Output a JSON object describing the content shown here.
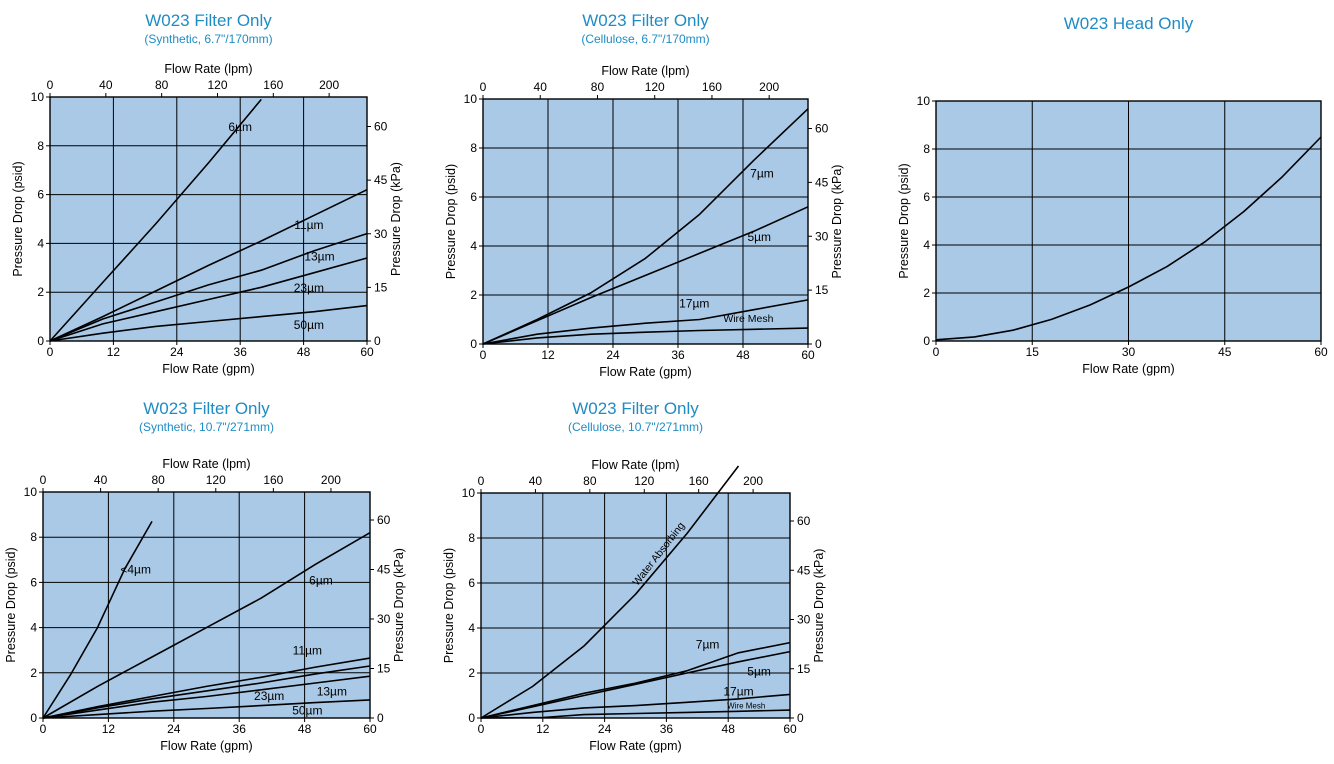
{
  "colors": {
    "plot_bg": "#a9c9e7",
    "title": "#1f8cc4",
    "ink": "#000000"
  },
  "chart_data": [
    {
      "type": "line",
      "title": "W023 Filter Only",
      "subtitle": "(Synthetic, 6.7\"/170mm)",
      "xlabel": "Flow Rate  (gpm)",
      "ylabel": "Pressure Drop  (psid)",
      "x2label": "Flow Rate  (lpm)",
      "y2label": "Pressure Drop  (kPa)",
      "xlim": [
        0,
        60
      ],
      "ylim": [
        0,
        10
      ],
      "xticks": [
        0,
        12,
        24,
        36,
        48,
        60
      ],
      "yticks": [
        0,
        2,
        4,
        6,
        8,
        10
      ],
      "x2ticks": [
        0,
        40,
        80,
        120,
        160,
        200
      ],
      "y2ticks": [
        0,
        15,
        30,
        45,
        60
      ],
      "grid": true,
      "series": [
        {
          "name": "6µm",
          "x": [
            0,
            10,
            20,
            30,
            40
          ],
          "y": [
            0,
            2.4,
            4.8,
            7.3,
            9.9
          ]
        },
        {
          "name": "11µm",
          "x": [
            0,
            10,
            20,
            30,
            40,
            50,
            60
          ],
          "y": [
            0,
            1.0,
            2.05,
            3.1,
            4.1,
            5.15,
            6.2
          ]
        },
        {
          "name": "13µm",
          "x": [
            0,
            10,
            20,
            30,
            40,
            50,
            60
          ],
          "y": [
            0,
            0.9,
            1.6,
            2.3,
            2.9,
            3.7,
            4.4
          ]
        },
        {
          "name": "23µm",
          "x": [
            0,
            10,
            20,
            30,
            40,
            50,
            60
          ],
          "y": [
            0,
            0.7,
            1.2,
            1.7,
            2.2,
            2.8,
            3.4
          ]
        },
        {
          "name": "50µm",
          "x": [
            0,
            10,
            20,
            30,
            40,
            50,
            60
          ],
          "y": [
            0,
            0.32,
            0.6,
            0.8,
            1.0,
            1.2,
            1.45
          ]
        }
      ],
      "labels": [
        {
          "text": "6µm",
          "x": 36,
          "y": 8.6
        },
        {
          "text": "11µm",
          "x": 49,
          "y": 4.6
        },
        {
          "text": "13µm",
          "x": 51,
          "y": 3.3
        },
        {
          "text": "23µm",
          "x": 49,
          "y": 2.0
        },
        {
          "text": "50µm",
          "x": 49,
          "y": 0.5
        }
      ]
    },
    {
      "type": "line",
      "title": "W023 Filter Only",
      "subtitle": "(Cellulose, 6.7\"/170mm)",
      "xlabel": "Flow Rate  (gpm)",
      "ylabel": "Pressure Drop  (psid)",
      "x2label": "Flow Rate  (lpm)",
      "y2label": "Pressure Drop  (kPa)",
      "xlim": [
        0,
        60
      ],
      "ylim": [
        0,
        10
      ],
      "xticks": [
        0,
        12,
        24,
        36,
        48,
        60
      ],
      "yticks": [
        0,
        2,
        4,
        6,
        8,
        10
      ],
      "x2ticks": [
        0,
        40,
        80,
        120,
        160,
        200
      ],
      "y2ticks": [
        0,
        15,
        30,
        45,
        60
      ],
      "grid": true,
      "series": [
        {
          "name": "7µm",
          "x": [
            0,
            10,
            20,
            30,
            40,
            50,
            60
          ],
          "y": [
            0,
            1.0,
            2.1,
            3.5,
            5.3,
            7.5,
            9.6
          ]
        },
        {
          "name": "5µm",
          "x": [
            0,
            10,
            20,
            30,
            40,
            50,
            60
          ],
          "y": [
            0,
            0.95,
            1.9,
            2.8,
            3.7,
            4.6,
            5.6
          ]
        },
        {
          "name": "17µm",
          "x": [
            0,
            10,
            20,
            30,
            40,
            50,
            60
          ],
          "y": [
            0,
            0.4,
            0.65,
            0.85,
            1.0,
            1.4,
            1.8
          ]
        },
        {
          "name": "Wire Mesh",
          "x": [
            0,
            10,
            20,
            30,
            40,
            50,
            60
          ],
          "y": [
            0,
            0.25,
            0.4,
            0.48,
            0.55,
            0.6,
            0.65
          ]
        }
      ],
      "labels": [
        {
          "text": "7µm",
          "x": 51.5,
          "y": 6.8
        },
        {
          "text": "5µm",
          "x": 51,
          "y": 4.2
        },
        {
          "text": "17µm",
          "x": 39,
          "y": 1.5
        },
        {
          "text": "Wire Mesh",
          "x": 49,
          "y": 0.9
        }
      ]
    },
    {
      "type": "line",
      "title": "W023 Head Only",
      "xlabel": "Flow Rate  (gpm)",
      "ylabel": "Pressure Drop  (psid)",
      "xlim": [
        0,
        60
      ],
      "ylim": [
        0,
        10
      ],
      "xticks": [
        0,
        15,
        30,
        45,
        60
      ],
      "yticks": [
        0,
        2,
        4,
        6,
        8,
        10
      ],
      "grid": true,
      "series": [
        {
          "x": [
            0,
            6,
            12,
            18,
            24,
            30,
            36,
            42,
            48,
            54,
            60
          ],
          "y": [
            0.05,
            0.17,
            0.45,
            0.9,
            1.5,
            2.25,
            3.1,
            4.15,
            5.4,
            6.85,
            8.5
          ]
        }
      ],
      "labels": []
    },
    {
      "type": "line",
      "title": "W023 Filter Only",
      "subtitle": "(Synthetic, 10.7\"/271mm)",
      "xlabel": "Flow Rate  (gpm)",
      "ylabel": "Pressure Drop  (psid)",
      "x2label": "Flow Rate  (lpm)",
      "y2label": "Pressure Drop  (kPa)",
      "xlim": [
        0,
        60
      ],
      "ylim": [
        0,
        10
      ],
      "xticks": [
        0,
        12,
        24,
        36,
        48,
        60
      ],
      "yticks": [
        0,
        2,
        4,
        6,
        8,
        10
      ],
      "x2ticks": [
        0,
        40,
        80,
        120,
        160,
        200
      ],
      "y2ticks": [
        0,
        15,
        30,
        45,
        60
      ],
      "grid": true,
      "series": [
        {
          "name": "<4µm",
          "x": [
            0,
            5,
            10,
            15,
            20
          ],
          "y": [
            0,
            1.9,
            4.0,
            6.6,
            8.7
          ]
        },
        {
          "name": "6µm",
          "x": [
            0,
            10,
            20,
            30,
            40,
            50,
            60
          ],
          "y": [
            0,
            1.4,
            2.7,
            4.0,
            5.3,
            6.8,
            8.2
          ]
        },
        {
          "name": "11µm",
          "x": [
            0,
            10,
            20,
            30,
            40,
            50,
            60
          ],
          "y": [
            0,
            0.5,
            0.95,
            1.4,
            1.8,
            2.25,
            2.65
          ]
        },
        {
          "name": "13µm",
          "x": [
            0,
            10,
            20,
            30,
            40,
            50,
            60
          ],
          "y": [
            0,
            0.45,
            0.85,
            1.2,
            1.55,
            1.95,
            2.3
          ]
        },
        {
          "name": "23µm",
          "x": [
            0,
            10,
            20,
            30,
            40,
            50,
            60
          ],
          "y": [
            0,
            0.35,
            0.7,
            0.95,
            1.25,
            1.55,
            1.85
          ]
        },
        {
          "name": "50µm",
          "x": [
            0,
            10,
            20,
            30,
            40,
            50,
            60
          ],
          "y": [
            0,
            0.15,
            0.3,
            0.42,
            0.55,
            0.68,
            0.8
          ]
        }
      ],
      "labels": [
        {
          "text": "<4µm",
          "x": 17,
          "y": 6.4
        },
        {
          "text": "6µm",
          "x": 51,
          "y": 5.9
        },
        {
          "text": "11µm",
          "x": 48.5,
          "y": 2.8
        },
        {
          "text": "13µm",
          "x": 53,
          "y": 1.0
        },
        {
          "text": "23µm",
          "x": 41.5,
          "y": 0.8
        },
        {
          "text": "50µm",
          "x": 48.5,
          "y": 0.15
        }
      ]
    },
    {
      "type": "line",
      "title": "W023 Filter Only",
      "subtitle": "(Cellulose, 10.7\"/271mm)",
      "xlabel": "Flow Rate  (gpm)",
      "ylabel": "Pressure Drop  (psid)",
      "x2label": "Flow Rate  (lpm)",
      "y2label": "Pressure Drop  (kPa)",
      "xlim": [
        0,
        60
      ],
      "ylim": [
        0,
        10
      ],
      "xticks": [
        0,
        12,
        24,
        36,
        48,
        60
      ],
      "yticks": [
        0,
        2,
        4,
        6,
        8,
        10
      ],
      "x2ticks": [
        0,
        40,
        80,
        120,
        160,
        200
      ],
      "y2ticks": [
        0,
        15,
        30,
        45,
        60
      ],
      "grid": true,
      "series": [
        {
          "name": "Water Absorbing",
          "x": [
            0,
            10,
            20,
            30,
            40,
            50
          ],
          "y": [
            0,
            1.4,
            3.2,
            5.5,
            8.2,
            11.2
          ]
        },
        {
          "name": "7µm",
          "x": [
            0,
            10,
            20,
            30,
            40,
            50,
            60
          ],
          "y": [
            0,
            0.55,
            1.1,
            1.55,
            2.1,
            2.9,
            3.35
          ]
        },
        {
          "name": "5µm",
          "x": [
            0,
            10,
            20,
            30,
            40,
            50,
            60
          ],
          "y": [
            0,
            0.5,
            1.0,
            1.5,
            2.0,
            2.5,
            2.95
          ]
        },
        {
          "name": "17µm",
          "x": [
            0,
            10,
            20,
            30,
            40,
            50,
            60
          ],
          "y": [
            0,
            0.25,
            0.45,
            0.55,
            0.7,
            0.85,
            1.05
          ]
        },
        {
          "name": "Wire Mesh",
          "x": [
            0,
            12,
            20,
            30,
            40,
            50,
            60
          ],
          "y": [
            0,
            0.02,
            0.15,
            0.2,
            0.25,
            0.3,
            0.35
          ]
        }
      ],
      "labels": [
        {
          "text": "Water Absorbing",
          "x": 35,
          "y": 7.2,
          "rotate": -52
        },
        {
          "text": "7µm",
          "x": 44,
          "y": 3.1
        },
        {
          "text": "5µm",
          "x": 54,
          "y": 1.9
        },
        {
          "text": "17µm",
          "x": 50,
          "y": 1.0
        },
        {
          "text": "Wire Mesh",
          "x": 51.5,
          "y": 0.42,
          "small": true
        }
      ]
    }
  ]
}
